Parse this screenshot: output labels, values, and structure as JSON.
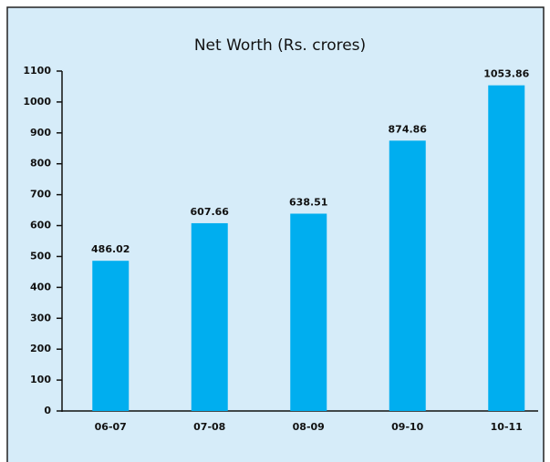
{
  "chart_data": {
    "type": "bar",
    "title": "Net Worth (Rs. crores)",
    "categories": [
      "06-07",
      "07-08",
      "08-09",
      "09-10",
      "10-11"
    ],
    "values": [
      486.02,
      607.66,
      638.51,
      874.86,
      1053.86
    ],
    "color": "#00aeef",
    "ylim": [
      0,
      1100
    ],
    "yticks": [
      0,
      100,
      200,
      300,
      400,
      500,
      600,
      700,
      800,
      900,
      1000,
      1100
    ],
    "grid": false
  }
}
